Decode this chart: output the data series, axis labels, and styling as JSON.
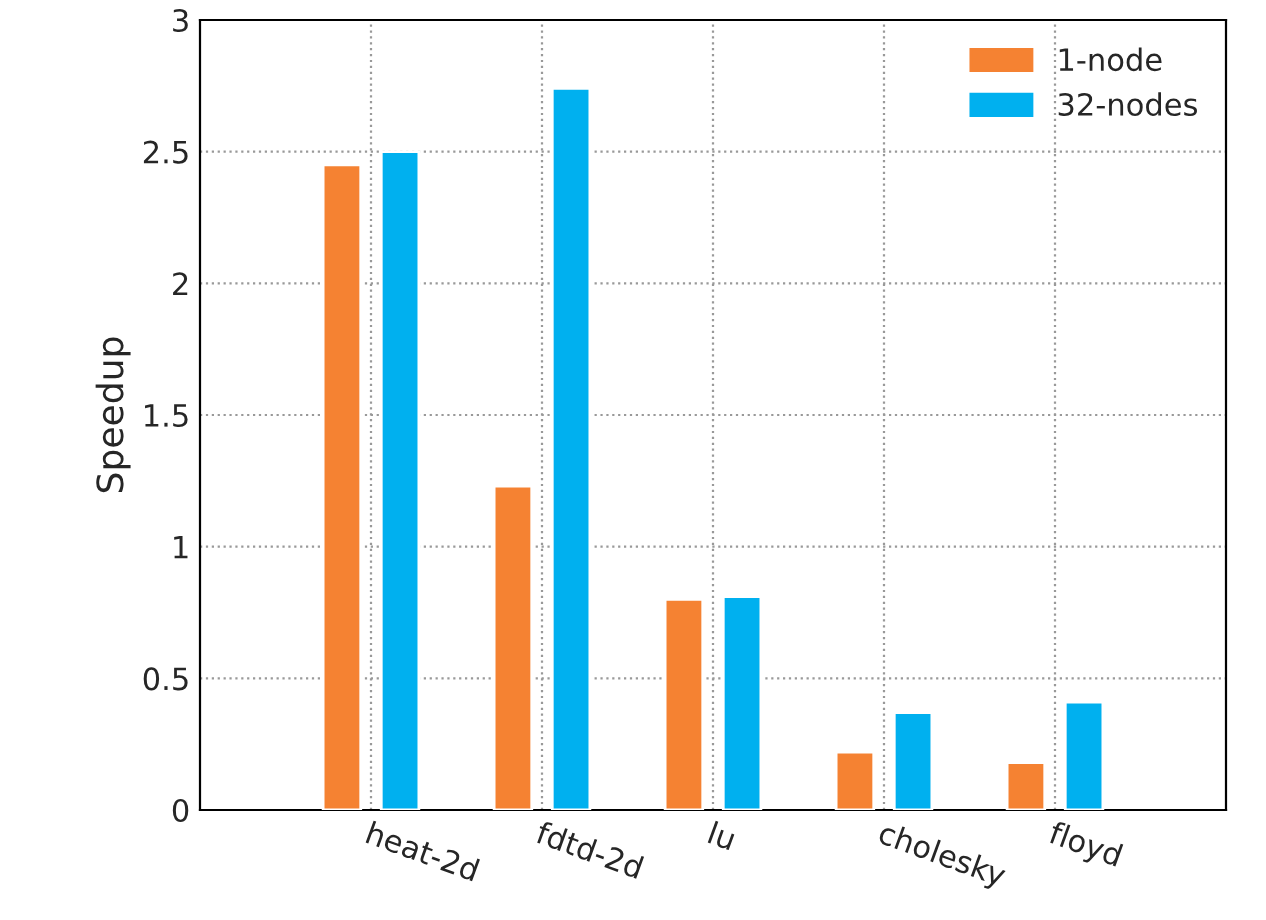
{
  "chart_data": {
    "type": "bar",
    "ylabel": "Speedup",
    "categories": [
      "heat-2d",
      "fdtd-2d",
      "lu",
      "cholesky",
      "floyd"
    ],
    "series": [
      {
        "name": "1-node",
        "color": "#f58232",
        "values": [
          2.45,
          1.23,
          0.8,
          0.22,
          0.18
        ]
      },
      {
        "name": "32-nodes",
        "color": "#00b0ef",
        "values": [
          2.5,
          2.74,
          0.81,
          0.37,
          0.41
        ]
      }
    ],
    "ylim": [
      0,
      3
    ],
    "yticks": [
      0,
      0.5,
      1,
      1.5,
      2,
      2.5,
      3
    ],
    "grid": true,
    "legend": "top right"
  }
}
